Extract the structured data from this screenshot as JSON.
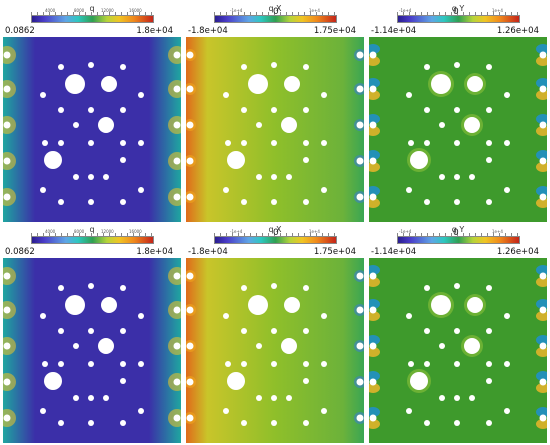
{
  "panels": [
    {
      "title": "q",
      "min": "0.0862",
      "max": "1.8e+04",
      "ticks": [
        "4000",
        "8000",
        "12000",
        "16000"
      ],
      "mid": ""
    },
    {
      "title": "q X",
      "min": "-1.8e+04",
      "max": "1.75e+04",
      "ticks": [
        "-1e+4",
        "",
        "1e+4"
      ],
      "mid": "0"
    },
    {
      "title": "q Y",
      "min": "-1.14e+04",
      "max": "1.26e+04",
      "ticks": [
        "-1e+4",
        "",
        "1e+4"
      ],
      "mid": "0"
    },
    {
      "title": "q",
      "min": "0.0862",
      "max": "1.8e+04",
      "ticks": [
        "4000",
        "8000",
        "12000",
        "16000"
      ],
      "mid": ""
    },
    {
      "title": "q X",
      "min": "-1.8e+04",
      "max": "1.75e+04",
      "ticks": [
        "-1e+4",
        "",
        "1e+4"
      ],
      "mid": "0"
    },
    {
      "title": "q Y",
      "min": "-1.14e+04",
      "max": "1.26e+04",
      "ticks": [
        "-1e+4",
        "",
        "1e+4"
      ],
      "mid": "0"
    }
  ],
  "colors": {
    "magnitude_bg": "#3b2fa8",
    "magnitude_edge": "#1fa6a0",
    "x_left": "#e06a1a",
    "x_mid": "#8fbf2a",
    "x_right": "#3aa654",
    "y_bg": "#3e9a2c",
    "hole": "#ffffff"
  },
  "field_types": [
    "magnitude",
    "x",
    "y",
    "magnitude",
    "x",
    "y"
  ]
}
